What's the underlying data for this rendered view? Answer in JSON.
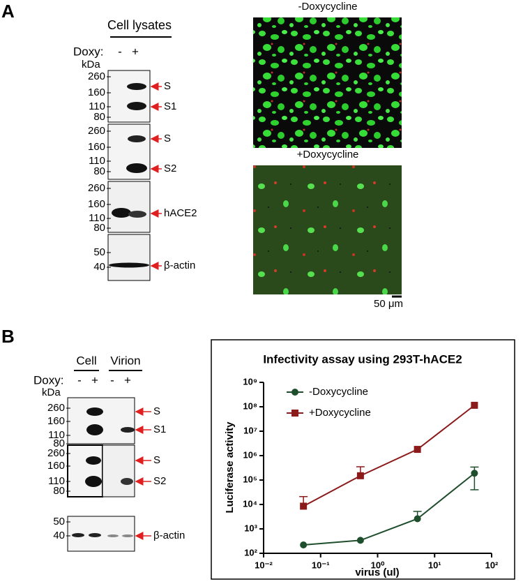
{
  "panel_a": {
    "label": "A",
    "lysate_header": "Cell lysates",
    "doxy": "Doxy:",
    "lanes": [
      "-",
      "+"
    ],
    "kda": "kDa",
    "blots": [
      {
        "markers": [
          260,
          160,
          110,
          80
        ],
        "bands": [
          "S",
          "S1"
        ]
      },
      {
        "markers": [
          260,
          160,
          110,
          80
        ],
        "bands": [
          "S",
          "S2"
        ]
      },
      {
        "markers": [
          260,
          160,
          110,
          80
        ],
        "bands": [
          "hACE2"
        ]
      },
      {
        "markers": [
          50,
          40
        ],
        "bands": [
          "β-actin"
        ]
      }
    ],
    "images": [
      "-Doxycycline",
      "+Doxycycline"
    ],
    "scale_bar": "50 μm"
  },
  "panel_b": {
    "label": "B",
    "headers": [
      "Cell",
      "Virion"
    ],
    "doxy": "Doxy:",
    "lanes": [
      "-",
      "+",
      "-",
      "+"
    ],
    "kda": "kDa",
    "blots": [
      {
        "markers": [
          260,
          160,
          110,
          80
        ],
        "bands": [
          "S",
          "S1"
        ]
      },
      {
        "markers": [
          260,
          160,
          110,
          80
        ],
        "bands": [
          "S",
          "S2"
        ]
      },
      {
        "markers": [
          50,
          40
        ],
        "bands": [
          "β-actin"
        ]
      }
    ]
  },
  "chart_data": {
    "type": "line",
    "title": "Infectivity assay using 293T-hACE2",
    "x_label": "virus (ul)",
    "y_label": "Luciferase activity",
    "log_x": true,
    "log_y": true,
    "legend": "upper left",
    "x": [
      0.05,
      0.5,
      5,
      50
    ],
    "series": [
      {
        "name": "-Doxycycline",
        "color": "#1f4e2c",
        "marker": "circle",
        "values": [
          220,
          340,
          2600,
          190000
        ],
        "errors_up": [
          null,
          null,
          2600,
          150000
        ],
        "errors_down": [
          null,
          null,
          null,
          150000
        ]
      },
      {
        "name": "+Doxycycline",
        "color": "#8b1a1a",
        "marker": "square",
        "values": [
          8500,
          150000,
          1800000,
          115000000
        ],
        "errors_up": [
          12500,
          200000,
          null,
          null
        ],
        "errors_down": [
          null,
          null,
          null,
          null
        ]
      }
    ],
    "xlim": [
      0.01,
      100
    ],
    "xticks": [
      {
        "value": 0.01,
        "label": "10⁻²"
      },
      {
        "value": 0.1,
        "label": "10⁻¹"
      },
      {
        "value": 1,
        "label": "10⁰"
      },
      {
        "value": 10,
        "label": "10¹"
      },
      {
        "value": 100,
        "label": "10²"
      }
    ],
    "ylim": [
      100,
      1000000000
    ],
    "yticks": [
      {
        "value": 100,
        "label": "10²"
      },
      {
        "value": 1000,
        "label": "10³"
      },
      {
        "value": 10000,
        "label": "10⁴"
      },
      {
        "value": 100000,
        "label": "10⁵"
      },
      {
        "value": 1000000,
        "label": "10⁶"
      },
      {
        "value": 10000000,
        "label": "10⁷"
      },
      {
        "value": 100000000,
        "label": "10⁸"
      },
      {
        "value": 1000000000,
        "label": "10⁹"
      }
    ]
  }
}
